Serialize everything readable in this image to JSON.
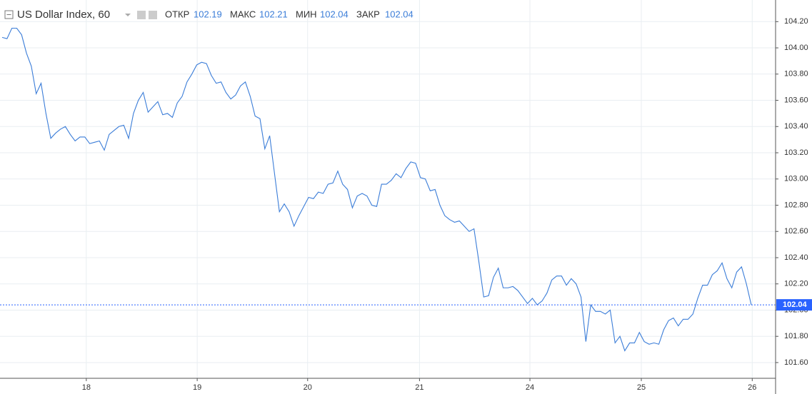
{
  "header": {
    "symbol": "US Dollar Index, 60",
    "open_label": "ОТКР",
    "open": "102.19",
    "high_label": "МАКС",
    "high": "102.21",
    "low_label": "МИН",
    "low": "102.04",
    "close_label": "ЗАКР",
    "close": "102.04"
  },
  "chart_data": {
    "type": "line",
    "color": "#3b7dd8",
    "grid": true,
    "values": [
      104.08,
      104.07,
      104.15,
      104.15,
      104.1,
      103.96,
      103.86,
      103.65,
      103.73,
      103.5,
      103.31,
      103.35,
      103.38,
      103.4,
      103.34,
      103.29,
      103.32,
      103.32,
      103.27,
      103.28,
      103.29,
      103.22,
      103.34,
      103.37,
      103.4,
      103.41,
      103.31,
      103.5,
      103.6,
      103.66,
      103.51,
      103.55,
      103.59,
      103.49,
      103.5,
      103.47,
      103.58,
      103.63,
      103.74,
      103.8,
      103.87,
      103.89,
      103.88,
      103.79,
      103.73,
      103.74,
      103.66,
      103.61,
      103.64,
      103.71,
      103.74,
      103.63,
      103.48,
      103.46,
      103.23,
      103.33,
      103.04,
      102.75,
      102.81,
      102.75,
      102.64,
      102.72,
      102.79,
      102.86,
      102.85,
      102.9,
      102.89,
      102.96,
      102.97,
      103.06,
      102.96,
      102.92,
      102.78,
      102.87,
      102.89,
      102.87,
      102.8,
      102.79,
      102.96,
      102.96,
      102.99,
      103.04,
      103.01,
      103.08,
      103.13,
      103.12,
      103.01,
      103.0,
      102.91,
      102.92,
      102.8,
      102.72,
      102.69,
      102.67,
      102.68,
      102.64,
      102.6,
      102.62,
      102.37,
      102.1,
      102.11,
      102.25,
      102.32,
      102.17,
      102.17,
      102.18,
      102.15,
      102.1,
      102.05,
      102.09,
      102.04,
      102.07,
      102.13,
      102.23,
      102.26,
      102.26,
      102.19,
      102.24,
      102.2,
      102.1,
      101.76,
      102.04,
      101.99,
      101.99,
      101.97,
      102.0,
      101.75,
      101.8,
      101.69,
      101.75,
      101.75,
      101.83,
      101.76,
      101.74,
      101.75,
      101.74,
      101.85,
      101.92,
      101.94,
      101.88,
      101.93,
      101.93,
      101.97,
      102.09,
      102.19,
      102.19,
      102.27,
      102.3,
      102.36,
      102.24,
      102.17,
      102.29,
      102.33,
      102.2,
      102.04
    ],
    "xlim": [
      -0.44,
      159
    ],
    "xticks": [
      {
        "value": 17.3,
        "label": "18"
      },
      {
        "value": 40.1,
        "label": "19"
      },
      {
        "value": 62.8,
        "label": "20"
      },
      {
        "value": 85.8,
        "label": "21"
      },
      {
        "value": 108.5,
        "label": "24"
      },
      {
        "value": 131.4,
        "label": "25"
      },
      {
        "value": 154.2,
        "label": "26"
      }
    ],
    "ylim": [
      101.48,
      104.365
    ],
    "yticks": [
      {
        "value": 101.6,
        "label": "101.60"
      },
      {
        "value": 101.8,
        "label": "101.80"
      },
      {
        "value": 102.0,
        "label": "102.00"
      },
      {
        "value": 102.2,
        "label": "102.20"
      },
      {
        "value": 102.4,
        "label": "102.40"
      },
      {
        "value": 102.6,
        "label": "102.60"
      },
      {
        "value": 102.8,
        "label": "102.80"
      },
      {
        "value": 103.0,
        "label": "103.00"
      },
      {
        "value": 103.2,
        "label": "103.20"
      },
      {
        "value": 103.4,
        "label": "103.40"
      },
      {
        "value": 103.6,
        "label": "103.60"
      },
      {
        "value": 103.8,
        "label": "103.80"
      },
      {
        "value": 104.0,
        "label": "104.00"
      },
      {
        "value": 104.2,
        "label": "104.20"
      }
    ],
    "last_price": {
      "value": 102.04,
      "label": "102.04"
    }
  }
}
